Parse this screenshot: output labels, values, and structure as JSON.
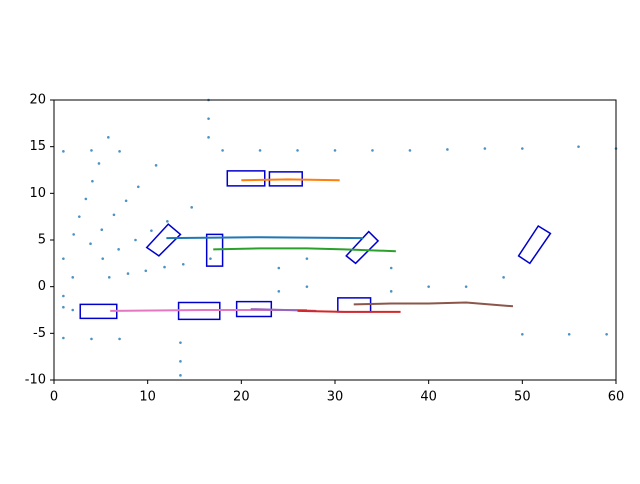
{
  "chart_data": {
    "type": "scatter",
    "xlim": [
      0,
      60
    ],
    "ylim": [
      -10,
      20
    ],
    "xticks": [
      0,
      10,
      20,
      30,
      40,
      50,
      60
    ],
    "yticks": [
      -10,
      -5,
      0,
      5,
      10,
      15,
      20
    ],
    "series": [
      {
        "type": "scatter",
        "color": "#1f77b4",
        "x": [
          5.9,
          5.2,
          3.9,
          2.1,
          7.9,
          6.9,
          5.1,
          2.7,
          9.8,
          8.7,
          6.4,
          3.4,
          11.8,
          10.4,
          7.7,
          4.1,
          13.8,
          12.1,
          9.0,
          4.8,
          16.7,
          14.7,
          10.9,
          5.8,
          1,
          4,
          7,
          16.5,
          16.5,
          16.5,
          18,
          22,
          26,
          30,
          34,
          38,
          42,
          46,
          50,
          56,
          60,
          1,
          4,
          7,
          13.5,
          13.5,
          13.5,
          50,
          55,
          59,
          1,
          2,
          24,
          24,
          27,
          27,
          36,
          36,
          40,
          44,
          48,
          1,
          2,
          1
        ],
        "y": [
          1.0,
          3.0,
          4.6,
          5.6,
          1.4,
          4.0,
          6.1,
          7.5,
          1.7,
          5.0,
          7.7,
          9.4,
          2.1,
          6.0,
          9.2,
          11.3,
          2.4,
          7.0,
          10.7,
          13.2,
          3.0,
          8.5,
          13.0,
          16.0,
          14.5,
          14.6,
          14.5,
          16,
          18,
          20,
          14.6,
          14.6,
          14.6,
          14.6,
          14.6,
          14.6,
          14.7,
          14.8,
          14.8,
          15,
          14.8,
          -5.5,
          -5.6,
          -5.6,
          -6,
          -8,
          -9.5,
          -5.1,
          -5.1,
          -5.1,
          -2.2,
          -2.5,
          -0.5,
          2,
          0,
          3,
          -0.5,
          2,
          0,
          0,
          1,
          3,
          1,
          -1
        ]
      },
      {
        "type": "polygon",
        "color": "#0000cc",
        "x": [
          2.8,
          6.7,
          6.7,
          2.8
        ],
        "y": [
          -3.4,
          -3.4,
          -1.9,
          -1.9
        ]
      },
      {
        "type": "polygon",
        "color": "#0000cc",
        "x": [
          13.3,
          17.7,
          17.7,
          13.3
        ],
        "y": [
          -3.5,
          -3.5,
          -1.7,
          -1.7
        ]
      },
      {
        "type": "polygon",
        "color": "#0000cc",
        "x": [
          19.5,
          23.2,
          23.2,
          19.5
        ],
        "y": [
          -3.2,
          -3.2,
          -1.6,
          -1.6
        ]
      },
      {
        "type": "polygon",
        "color": "#0000cc",
        "x": [
          30.3,
          33.8,
          33.8,
          30.3
        ],
        "y": [
          -2.7,
          -2.7,
          -1.2,
          -1.2
        ]
      },
      {
        "type": "polygon",
        "color": "#0000cc",
        "x": [
          18.5,
          22.5,
          22.5,
          18.5
        ],
        "y": [
          10.8,
          10.8,
          12.4,
          12.4
        ]
      },
      {
        "type": "polygon",
        "color": "#0000cc",
        "x": [
          23,
          26.5,
          26.5,
          23
        ],
        "y": [
          10.8,
          10.8,
          12.3,
          12.3
        ]
      },
      {
        "type": "polygon",
        "color": "#0000cc",
        "x": [
          16.3,
          18.0,
          18.0,
          16.3
        ],
        "y": [
          2.2,
          2.2,
          5.6,
          5.6
        ]
      },
      {
        "type": "polygon",
        "color": "#0000cc",
        "x": [
          9.9,
          12.2,
          13.5,
          11.2
        ],
        "y": [
          4.2,
          6.7,
          5.6,
          3.3
        ]
      },
      {
        "type": "polygon",
        "color": "#0000cc",
        "x": [
          31.2,
          33.6,
          34.6,
          32.2
        ],
        "y": [
          3.3,
          5.9,
          4.9,
          2.5
        ]
      },
      {
        "type": "polygon",
        "color": "#0000cc",
        "x": [
          49.6,
          51.7,
          53,
          50.8
        ],
        "y": [
          3.3,
          6.5,
          5.7,
          2.5
        ]
      },
      {
        "type": "line",
        "color": "#ff7f0e",
        "x": [
          20,
          25,
          30.5
        ],
        "y": [
          11.4,
          11.5,
          11.4
        ]
      },
      {
        "type": "line",
        "color": "#1f77b4",
        "x": [
          12,
          22,
          33
        ],
        "y": [
          5.2,
          5.3,
          5.2
        ]
      },
      {
        "type": "line",
        "color": "#2ca02c",
        "x": [
          17,
          22,
          27,
          31,
          36.5
        ],
        "y": [
          4,
          4.1,
          4.1,
          4.0,
          3.8
        ]
      },
      {
        "type": "line",
        "color": "#e377c2",
        "x": [
          6,
          16,
          27
        ],
        "y": [
          -2.6,
          -2.5,
          -2.5
        ]
      },
      {
        "type": "line",
        "color": "#9467bd",
        "x": [
          21,
          28
        ],
        "y": [
          -2.4,
          -2.6
        ]
      },
      {
        "type": "line",
        "color": "#d62728",
        "x": [
          26,
          31,
          37
        ],
        "y": [
          -2.6,
          -2.7,
          -2.7
        ]
      },
      {
        "type": "line",
        "color": "#8c564b",
        "x": [
          32,
          36,
          40,
          44,
          49
        ],
        "y": [
          -1.9,
          -1.8,
          -1.8,
          -1.7,
          -2.1
        ]
      }
    ]
  }
}
